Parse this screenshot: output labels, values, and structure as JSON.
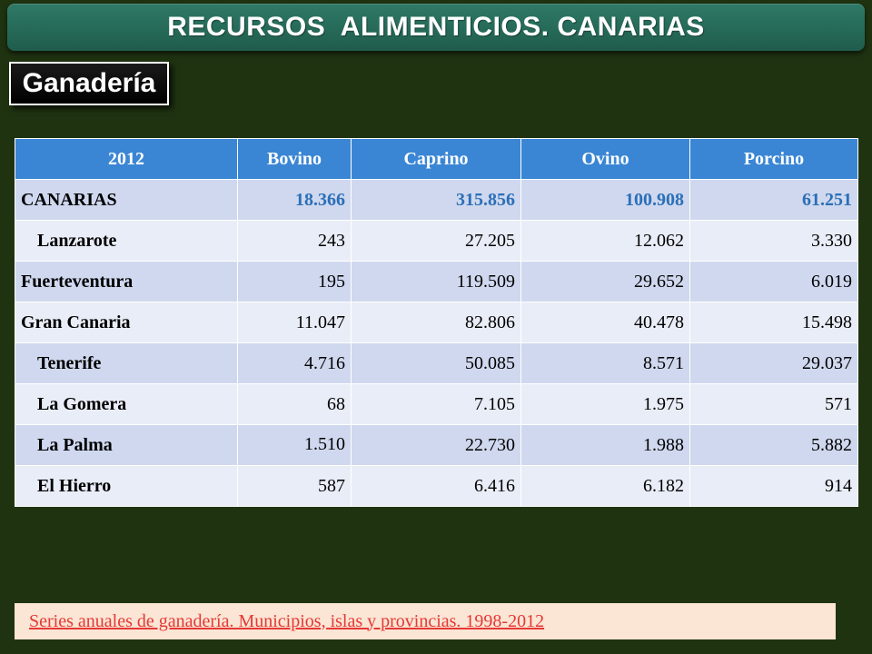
{
  "header": {
    "title": "RECURSOS  ALIMENTICIOS. CANARIAS"
  },
  "section": {
    "label": "Ganadería"
  },
  "table": {
    "columns": [
      "2012",
      "Bovino",
      "Caprino",
      "Ovino",
      "Porcino"
    ],
    "rows": [
      {
        "name": "CANARIAS",
        "bovino": "18.366",
        "caprino": "315.856",
        "ovino": "100.908",
        "porcino": "61.251"
      },
      {
        "name": "Lanzarote",
        "bovino": "243",
        "caprino": "27.205",
        "ovino": "12.062",
        "porcino": "3.330"
      },
      {
        "name": "Fuerteventura",
        "bovino": "195",
        "caprino": "119.509",
        "ovino": "29.652",
        "porcino": "6.019"
      },
      {
        "name": "Gran Canaria",
        "bovino": "11.047",
        "caprino": "82.806",
        "ovino": "40.478",
        "porcino": "15.498"
      },
      {
        "name": "Tenerife",
        "bovino": "4.716",
        "caprino": "50.085",
        "ovino": "8.571",
        "porcino": "29.037"
      },
      {
        "name": "La Gomera",
        "bovino": "68",
        "caprino": "7.105",
        "ovino": "1.975",
        "porcino": "571"
      },
      {
        "name": "La Palma",
        "bovino": "1.510",
        "caprino": "22.730",
        "ovino": "1.988",
        "porcino": "5.882"
      },
      {
        "name": "El Hierro",
        "bovino": "587",
        "caprino": "6.416",
        "ovino": "6.182",
        "porcino": "914"
      }
    ]
  },
  "source": {
    "link_text": "Series anuales de ganadería. Municipios, islas y provincias. 1998-2012"
  },
  "colors": {
    "background": "#1f3311",
    "title_bar": "#2a6e5c",
    "header_row": "#3a86d4",
    "total_values": "#2b6fb8",
    "link": "#e53935",
    "source_box": "#fbe5d4"
  }
}
